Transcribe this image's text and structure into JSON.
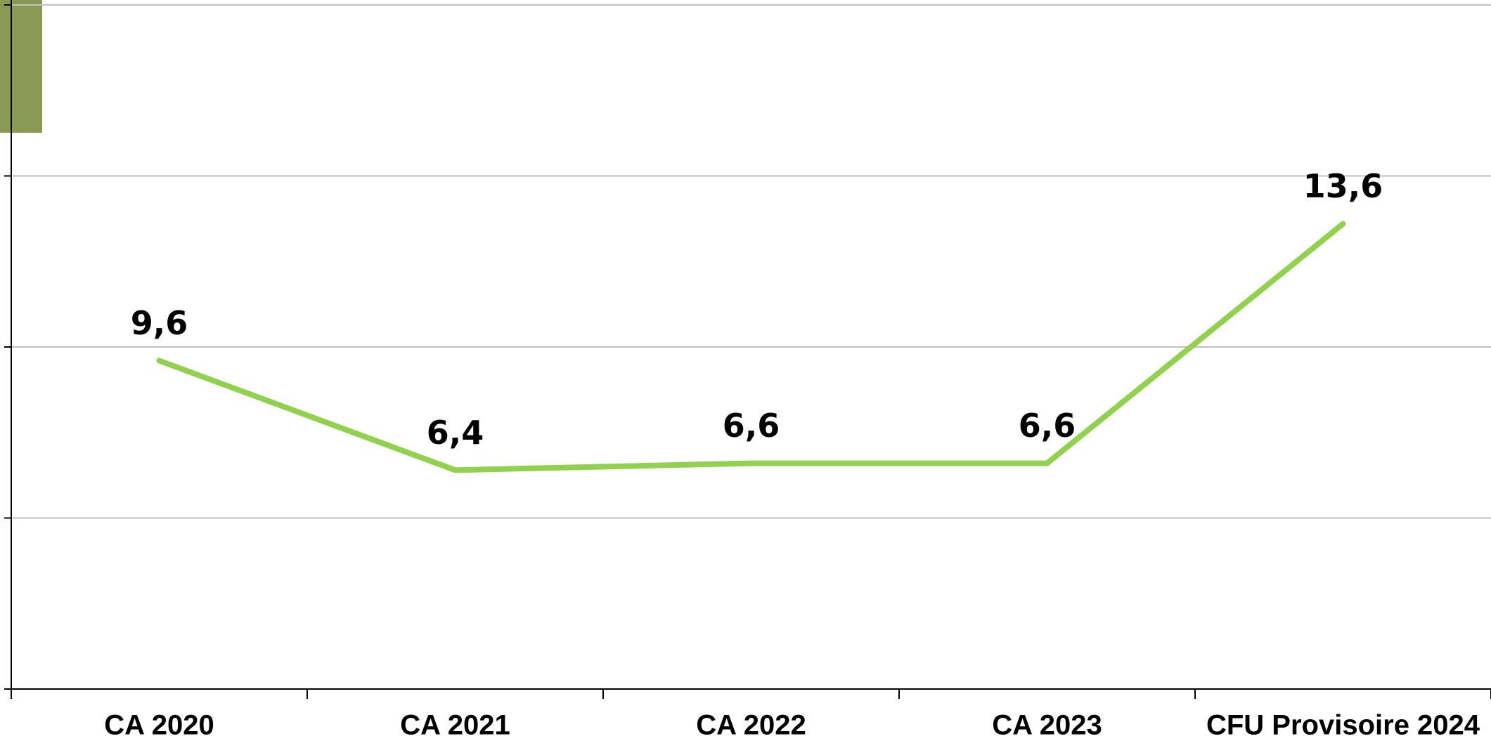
{
  "chart_data": {
    "type": "line",
    "categories": [
      "CA 2020",
      "CA 2021",
      "CA 2022",
      "CA 2023",
      "CFU Provisoire 2024"
    ],
    "series": [
      {
        "color": "#92d050",
        "values": [
          9.6,
          6.4,
          6.6,
          6.6,
          13.6
        ],
        "value_labels": [
          "9,6",
          "6,4",
          "6,6",
          "6,6",
          "13,6"
        ]
      }
    ],
    "ylim": [
      0,
      20
    ],
    "yticks": [
      0,
      5,
      10,
      15,
      20
    ],
    "grid": true
  }
}
